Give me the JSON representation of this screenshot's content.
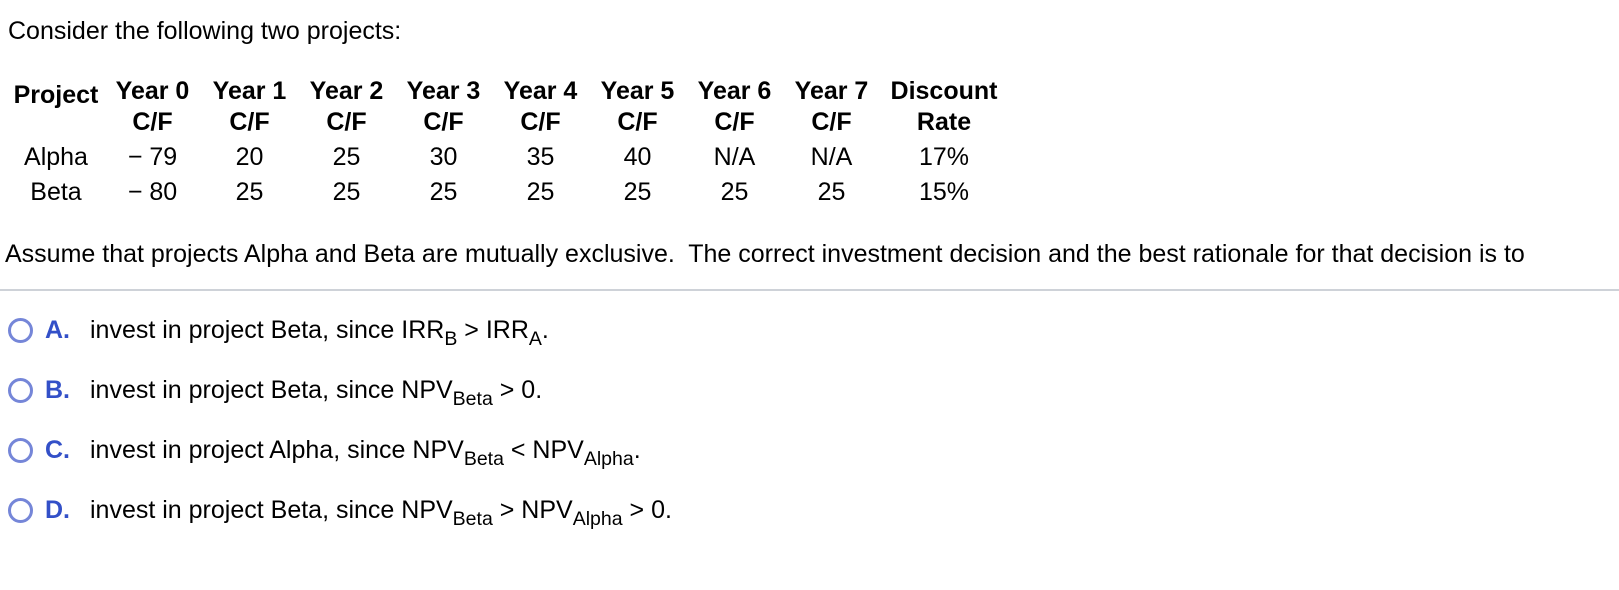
{
  "intro": "Consider the following two projects:",
  "table": {
    "headers": [
      {
        "line1": "Project",
        "line2": ""
      },
      {
        "line1": "Year 0",
        "line2": "C/F"
      },
      {
        "line1": "Year 1",
        "line2": "C/F"
      },
      {
        "line1": "Year 2",
        "line2": "C/F"
      },
      {
        "line1": "Year 3",
        "line2": "C/F"
      },
      {
        "line1": "Year 4",
        "line2": "C/F"
      },
      {
        "line1": "Year 5",
        "line2": "C/F"
      },
      {
        "line1": "Year 6",
        "line2": "C/F"
      },
      {
        "line1": "Year 7",
        "line2": "C/F"
      },
      {
        "line1": "Discount",
        "line2": "Rate"
      }
    ],
    "rows": [
      {
        "project": "Alpha",
        "values": [
          "− 79",
          "20",
          "25",
          "30",
          "35",
          "40",
          "N/A",
          "N/A",
          "17%"
        ]
      },
      {
        "project": "Beta",
        "values": [
          "− 80",
          "25",
          "25",
          "25",
          "25",
          "25",
          "25",
          "25",
          "15%"
        ]
      }
    ]
  },
  "question": "Assume that projects Alpha and Beta are mutually exclusive.  The correct investment decision and the best rationale for that decision is to",
  "options": [
    {
      "letter": "A.",
      "t1": "invest in project Beta, since IRR",
      "s1": "B",
      "t2": " > IRR",
      "s2": "A",
      "t3": "."
    },
    {
      "letter": "B.",
      "t1": "invest in project Beta, since NPV",
      "s1": "Beta",
      "t2": " > 0."
    },
    {
      "letter": "C.",
      "t1": "invest in project Alpha, since NPV",
      "s1": "Beta",
      "t2": " < NPV",
      "s2": "Alpha",
      "t3": "."
    },
    {
      "letter": "D.",
      "t1": "invest in project Beta, since NPV",
      "s1": "Beta",
      "t2": " > NPV",
      "s2": "Alpha",
      "t3": " > 0."
    }
  ],
  "colors": {
    "option_letter": "#3350c8",
    "radio_border": "#7586d8",
    "divider": "#ced2d8"
  }
}
